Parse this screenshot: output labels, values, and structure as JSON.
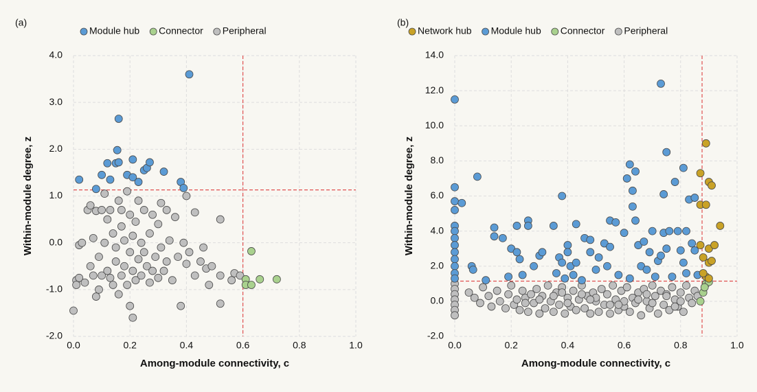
{
  "chart_data": [
    {
      "type": "scatter",
      "panel": "(a)",
      "xlabel": "Among-module connectivity, c",
      "ylabel": "Within-module degree, z",
      "xlim": [
        0,
        1
      ],
      "ylim": [
        -2,
        4
      ],
      "xticks": [
        {
          "value": 0,
          "label": "0.0"
        },
        {
          "value": 0.2,
          "label": "0.2"
        },
        {
          "value": 0.4,
          "label": "0.4"
        },
        {
          "value": 0.6,
          "label": "0.6"
        },
        {
          "value": 0.8,
          "label": "0.8"
        },
        {
          "value": 1,
          "label": "1.0"
        }
      ],
      "yticks": [
        {
          "value": -2,
          "label": "-2.0"
        },
        {
          "value": -1,
          "label": "-1.0"
        },
        {
          "value": 0,
          "label": "0.0"
        },
        {
          "value": 1,
          "label": "1.0"
        },
        {
          "value": 2,
          "label": "2.0"
        },
        {
          "value": 3,
          "label": "3.0"
        },
        {
          "value": 4,
          "label": "4.0"
        }
      ],
      "grid": true,
      "thresholds": {
        "x": 0.6,
        "y": 1.13
      },
      "series": [
        {
          "name": "Module hub",
          "color": "#5b9bd5",
          "x": [
            0.02,
            0.08,
            0.1,
            0.12,
            0.13,
            0.15,
            0.16,
            0.155,
            0.16,
            0.19,
            0.21,
            0.21,
            0.23,
            0.25,
            0.26,
            0.27,
            0.32,
            0.38,
            0.39,
            0.41
          ],
          "y": [
            1.35,
            1.15,
            1.45,
            1.7,
            1.35,
            1.7,
            2.65,
            1.98,
            1.72,
            1.45,
            1.78,
            1.4,
            1.3,
            1.55,
            1.6,
            1.72,
            1.52,
            1.3,
            1.17,
            3.6
          ]
        },
        {
          "name": "Connector",
          "color": "#a9d18e",
          "x": [
            0.63,
            0.61,
            0.61,
            0.63,
            0.66,
            0.72
          ],
          "y": [
            -0.18,
            -0.78,
            -0.9,
            -0.9,
            -0.78,
            -0.78
          ]
        },
        {
          "name": "Peripheral",
          "color": "#bfbfbf",
          "x": [
            0.01,
            0.01,
            0.02,
            0,
            0.02,
            0.03,
            0.04,
            0.05,
            0.06,
            0.06,
            0.07,
            0.07,
            0.08,
            0.08,
            0.09,
            0.09,
            0.1,
            0.1,
            0.11,
            0.11,
            0.12,
            0.12,
            0.13,
            0.13,
            0.14,
            0.14,
            0.15,
            0.15,
            0.16,
            0.16,
            0.17,
            0.17,
            0.17,
            0.18,
            0.18,
            0.19,
            0.19,
            0.2,
            0.2,
            0.2,
            0.21,
            0.21,
            0.21,
            0.22,
            0.22,
            0.23,
            0.23,
            0.24,
            0.24,
            0.25,
            0.25,
            0.26,
            0.27,
            0.27,
            0.28,
            0.28,
            0.29,
            0.3,
            0.3,
            0.31,
            0.31,
            0.32,
            0.33,
            0.33,
            0.34,
            0.35,
            0.36,
            0.37,
            0.38,
            0.39,
            0.4,
            0.4,
            0.41,
            0.43,
            0.43,
            0.45,
            0.46,
            0.47,
            0.48,
            0.49,
            0.52,
            0.52,
            0.52,
            0.56,
            0.57,
            0.59
          ],
          "y": [
            -0.8,
            -0.9,
            -0.75,
            -1.45,
            -0.05,
            0,
            -0.85,
            0.7,
            -0.5,
            0.8,
            -0.7,
            0.1,
            0.68,
            -1.15,
            -0.3,
            -1,
            0.7,
            -0.7,
            0,
            1.05,
            -0.6,
            0.5,
            -0.75,
            0.7,
            -0.9,
            0.2,
            -0.1,
            -0.4,
            0.9,
            -1.1,
            -0.7,
            0.7,
            0.35,
            -0.5,
            0.05,
            -0.9,
            1.1,
            0.6,
            -0.2,
            -1.35,
            -0.6,
            0.15,
            -1.6,
            -0.8,
            0.45,
            0.9,
            -0.35,
            0,
            -0.7,
            0.7,
            -0.2,
            -0.5,
            0.2,
            -0.85,
            -0.6,
            0.6,
            -0.3,
            -0.75,
            0.4,
            0.85,
            -0.1,
            -0.6,
            0.7,
            -0.4,
            0.05,
            -0.8,
            0.55,
            -0.3,
            -1.35,
            0,
            1,
            -0.45,
            -0.2,
            0.65,
            -0.7,
            -0.4,
            -0.1,
            -0.55,
            -0.9,
            -0.5,
            0.5,
            -1.3,
            -0.7,
            -0.8,
            -0.65,
            -0.7
          ]
        }
      ]
    },
    {
      "type": "scatter",
      "panel": "(b)",
      "xlabel": "Among-module connectivity, c",
      "ylabel": "Within-module degree, z",
      "xlim": [
        0,
        1
      ],
      "ylim": [
        -2,
        14
      ],
      "xticks": [
        {
          "value": 0,
          "label": "0.0"
        },
        {
          "value": 0.2,
          "label": "0.2"
        },
        {
          "value": 0.4,
          "label": "0.4"
        },
        {
          "value": 0.6,
          "label": "0.6"
        },
        {
          "value": 0.8,
          "label": "0.8"
        },
        {
          "value": 1,
          "label": "1.0"
        }
      ],
      "yticks": [
        {
          "value": -2,
          "label": "-2.0"
        },
        {
          "value": 0,
          "label": "0.0"
        },
        {
          "value": 2,
          "label": "2.0"
        },
        {
          "value": 4,
          "label": "4.0"
        },
        {
          "value": 6,
          "label": "6.0"
        },
        {
          "value": 8,
          "label": "8.0"
        },
        {
          "value": 10,
          "label": "10.0"
        },
        {
          "value": 12,
          "label": "12.0"
        },
        {
          "value": 14,
          "label": "14.0"
        }
      ],
      "grid": true,
      "thresholds": {
        "x": 0.876,
        "y": 1.15
      },
      "series": [
        {
          "name": "Network hub",
          "color": "#c9a227",
          "x": [
            0.87,
            0.89,
            0.9,
            0.91,
            0.87,
            0.89,
            0.94,
            0.87,
            0.9,
            0.92,
            0.88,
            0.9,
            0.91,
            0.89,
            0.88,
            0.9
          ],
          "y": [
            7.3,
            9,
            6.8,
            6.6,
            5.5,
            5.5,
            4.3,
            3.2,
            3,
            3.2,
            2.5,
            2.2,
            2.3,
            1.4,
            1.6,
            1.3
          ]
        },
        {
          "name": "Module hub",
          "color": "#5b9bd5",
          "x": [
            0,
            0,
            0,
            0,
            0,
            0,
            0,
            0,
            0,
            0,
            0,
            0,
            0,
            0.025,
            0.06,
            0.065,
            0.08,
            0.11,
            0.14,
            0.14,
            0.17,
            0.19,
            0.2,
            0.22,
            0.22,
            0.23,
            0.24,
            0.26,
            0.26,
            0.28,
            0.3,
            0.31,
            0.35,
            0.36,
            0.37,
            0.38,
            0.38,
            0.39,
            0.4,
            0.4,
            0.41,
            0.42,
            0.43,
            0.43,
            0.45,
            0.46,
            0.48,
            0.48,
            0.5,
            0.51,
            0.53,
            0.54,
            0.55,
            0.55,
            0.57,
            0.58,
            0.6,
            0.61,
            0.62,
            0.62,
            0.63,
            0.63,
            0.64,
            0.64,
            0.65,
            0.66,
            0.67,
            0.68,
            0.69,
            0.7,
            0.71,
            0.72,
            0.73,
            0.73,
            0.74,
            0.74,
            0.75,
            0.75,
            0.76,
            0.77,
            0.78,
            0.79,
            0.8,
            0.81,
            0.81,
            0.82,
            0.83,
            0.84,
            0.85,
            0.85,
            0.86,
            0.82
          ],
          "y": [
            11.5,
            6.5,
            5.7,
            5.2,
            4.3,
            4,
            3.6,
            3.2,
            2.8,
            2.4,
            2,
            1.6,
            1.3,
            5.6,
            2,
            1.8,
            7.1,
            1.2,
            4.2,
            3.7,
            3.6,
            1.4,
            3,
            2.8,
            4.3,
            2.4,
            1.5,
            4.6,
            4.3,
            2,
            2.6,
            2.8,
            4.3,
            1.6,
            2.5,
            6,
            2.2,
            1.3,
            3.2,
            2.8,
            2,
            1.5,
            4.4,
            2.2,
            1.2,
            3.6,
            3.5,
            2.8,
            1.8,
            2.5,
            3.3,
            2,
            4.6,
            3.1,
            4.5,
            1.5,
            3.9,
            7,
            7.8,
            1.3,
            5.4,
            6.3,
            7.4,
            4.6,
            3.2,
            2,
            3.4,
            1.8,
            2.8,
            4,
            1.4,
            2.3,
            12.4,
            2.6,
            3.9,
            6.1,
            8.5,
            3,
            4,
            1.4,
            6.8,
            4,
            2.9,
            7.6,
            2.2,
            4,
            5.8,
            3.3,
            5.9,
            2.9,
            1.5,
            1.6
          ]
        },
        {
          "name": "Connector",
          "color": "#a9d18e",
          "x": [
            0.88,
            0.89,
            0.9,
            0.87,
            0.885
          ],
          "y": [
            0.5,
            1,
            1.1,
            0,
            0.8
          ]
        },
        {
          "name": "Peripheral",
          "color": "#bfbfbf",
          "x": [
            0,
            0,
            0,
            0,
            0,
            0,
            0,
            0.05,
            0.07,
            0.09,
            0.1,
            0.12,
            0.13,
            0.15,
            0.16,
            0.18,
            0.19,
            0.2,
            0.21,
            0.22,
            0.23,
            0.24,
            0.25,
            0.26,
            0.27,
            0.28,
            0.29,
            0.3,
            0.31,
            0.32,
            0.33,
            0.34,
            0.35,
            0.36,
            0.37,
            0.38,
            0.39,
            0.4,
            0.41,
            0.42,
            0.43,
            0.44,
            0.45,
            0.46,
            0.47,
            0.48,
            0.49,
            0.5,
            0.51,
            0.52,
            0.53,
            0.54,
            0.55,
            0.56,
            0.57,
            0.58,
            0.59,
            0.6,
            0.61,
            0.62,
            0.63,
            0.64,
            0.65,
            0.66,
            0.67,
            0.68,
            0.69,
            0.7,
            0.71,
            0.72,
            0.73,
            0.74,
            0.75,
            0.76,
            0.77,
            0.78,
            0.79,
            0.8,
            0.81,
            0.82,
            0.83,
            0.84,
            0.85,
            0.86,
            0.3,
            0.35,
            0.4,
            0.45,
            0.5,
            0.55,
            0.6,
            0.65,
            0.7,
            0.75,
            0.8,
            0.25,
            0.38,
            0.48,
            0.58,
            0.68,
            0.78
          ],
          "y": [
            1,
            0.7,
            0.4,
            0.1,
            -0.2,
            -0.5,
            -0.8,
            0.5,
            0.2,
            -0.1,
            0.8,
            0.3,
            -0.3,
            0.6,
            0,
            -0.4,
            0.4,
            0.9,
            -0.2,
            0.1,
            -0.5,
            0.6,
            0.2,
            -0.6,
            0.4,
            -0.1,
            0.7,
            -0.7,
            0.3,
            -0.4,
            0.9,
            0,
            -0.6,
            0.5,
            -0.2,
            0.8,
            -0.7,
            0.2,
            -0.3,
            0.6,
            -0.5,
            0.1,
            0.9,
            -0.4,
            0.3,
            -0.7,
            0.5,
            0,
            -0.6,
            0.7,
            -0.2,
            0.4,
            -0.7,
            0.9,
            0.1,
            -0.5,
            0.6,
            -0.3,
            0.8,
            -0.6,
            0.2,
            -0.1,
            0.5,
            -0.8,
            0.7,
            0,
            -0.4,
            0.9,
            0.3,
            -0.7,
            0.6,
            -0.2,
            0.4,
            -0.5,
            0.8,
            0.1,
            -0.3,
            0.5,
            -0.6,
            0.9,
            0.2,
            -0.1,
            0.6,
            0.3,
            0.1,
            0.3,
            -0.1,
            0.4,
            0.2,
            -0.2,
            0,
            0.1,
            -0.1,
            0.3,
            0,
            -0.1,
            0.5,
            0.1,
            -0.2,
            0.4,
            -0.3
          ]
        }
      ]
    }
  ]
}
